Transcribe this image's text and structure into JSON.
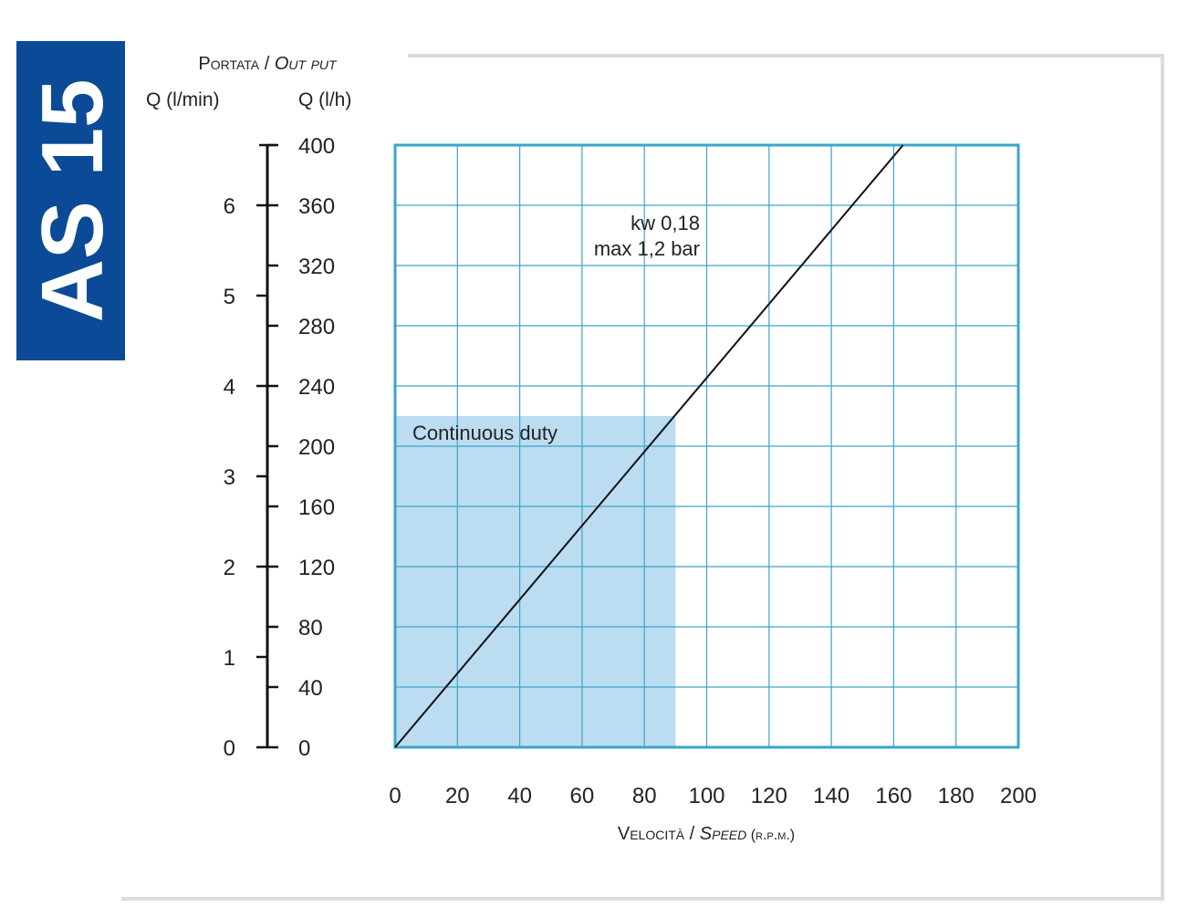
{
  "badge": {
    "text": "AS 15",
    "color": "#0b4a96"
  },
  "chart_data": {
    "type": "line",
    "title": "",
    "xlabel": "Velocità / Speed (r.p.m.)",
    "xlabel_parts": {
      "it": "Velocità",
      "sep": " / ",
      "en": "Speed",
      "unit": " (r.p.m.)"
    },
    "ylabel": "Portata / Out put",
    "ylabel_parts": {
      "it": "Portata",
      "sep": " / ",
      "en": "Out put"
    },
    "y_left_label": "Q (l/min)",
    "y_right_label": "Q (l/h)",
    "xlim": [
      0,
      200
    ],
    "ylim": [
      0,
      400
    ],
    "x_ticks": [
      0,
      20,
      40,
      60,
      80,
      100,
      120,
      140,
      160,
      180,
      200
    ],
    "y_ticks_lh": [
      0,
      40,
      80,
      120,
      160,
      200,
      240,
      280,
      320,
      360,
      400
    ],
    "y_ticks_lmin": [
      0,
      1,
      2,
      3,
      4,
      5,
      6
    ],
    "grid": true,
    "series": [
      {
        "x": [
          0,
          163
        ],
        "y": [
          0,
          400
        ],
        "color": "#111111"
      }
    ],
    "annotations": [
      {
        "line1": "kw 0,18",
        "line2": "max 1,2 bar"
      }
    ],
    "region": {
      "label": "Continuous duty",
      "x": [
        0,
        90
      ],
      "y": [
        0,
        220
      ],
      "color": "#bcdcf2"
    },
    "colors": {
      "grid": "#3aa6c6",
      "frame": "#dddddd"
    }
  }
}
